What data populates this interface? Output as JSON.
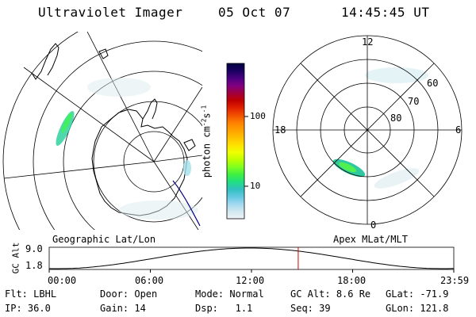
{
  "header": {
    "title": "Ultraviolet Imager",
    "date": "05 Oct 07",
    "time": "14:45:45 UT"
  },
  "maps": {
    "left_label": "Geographic Lat/Lon",
    "right_label": "Apex MLat/MLT",
    "mlt_labels": [
      "12",
      "18",
      "6",
      "0"
    ],
    "mlat_labels": [
      "60",
      "70",
      "80"
    ]
  },
  "colorbar": {
    "label": "photon cm",
    "label_exp1": "-2",
    "label_s": "s",
    "label_exp2": "-1",
    "ticks": [
      "100",
      "10"
    ],
    "colors": [
      "#000040",
      "#1a0060",
      "#4a0080",
      "#800080",
      "#a00040",
      "#c00000",
      "#e02000",
      "#f05000",
      "#ff8000",
      "#ffa000",
      "#ffc000",
      "#ffe000",
      "#f0ff00",
      "#c0ff00",
      "#80ff20",
      "#40f040",
      "#20e080",
      "#30c0c0",
      "#60c8e0",
      "#a0d8f0",
      "#d0e8f0",
      "#f0f4f8"
    ]
  },
  "altitude_plot": {
    "ylabel": "GC Alt",
    "y_ticks": [
      "9.0",
      "1.8"
    ],
    "x_ticks": [
      "00:00",
      "06:00",
      "12:00",
      "18:00",
      "23:59"
    ],
    "current_time": "14:45:45"
  },
  "status": {
    "flt_label": "Flt:",
    "flt_value": "LBHL",
    "door_label": "Door:",
    "door_value": "Open",
    "mode_label": "Mode:",
    "mode_value": "Normal",
    "gcalt_label": "GC Alt:",
    "gcalt_value": "8.6 Re",
    "glat_label": "GLat:",
    "glat_value": "-71.9",
    "ip_label": "IP:",
    "ip_value": "36.0",
    "gain_label": "Gain:",
    "gain_value": "14",
    "dsp_label": "Dsp:",
    "dsp_value": "1.1",
    "seq_label": "Seq:",
    "seq_value": "39",
    "glon_label": "GLon:",
    "glon_value": "121.8"
  },
  "colors": {
    "altitude_curve": "#000000",
    "time_marker": "#cc0000",
    "track_line": "#000080"
  }
}
